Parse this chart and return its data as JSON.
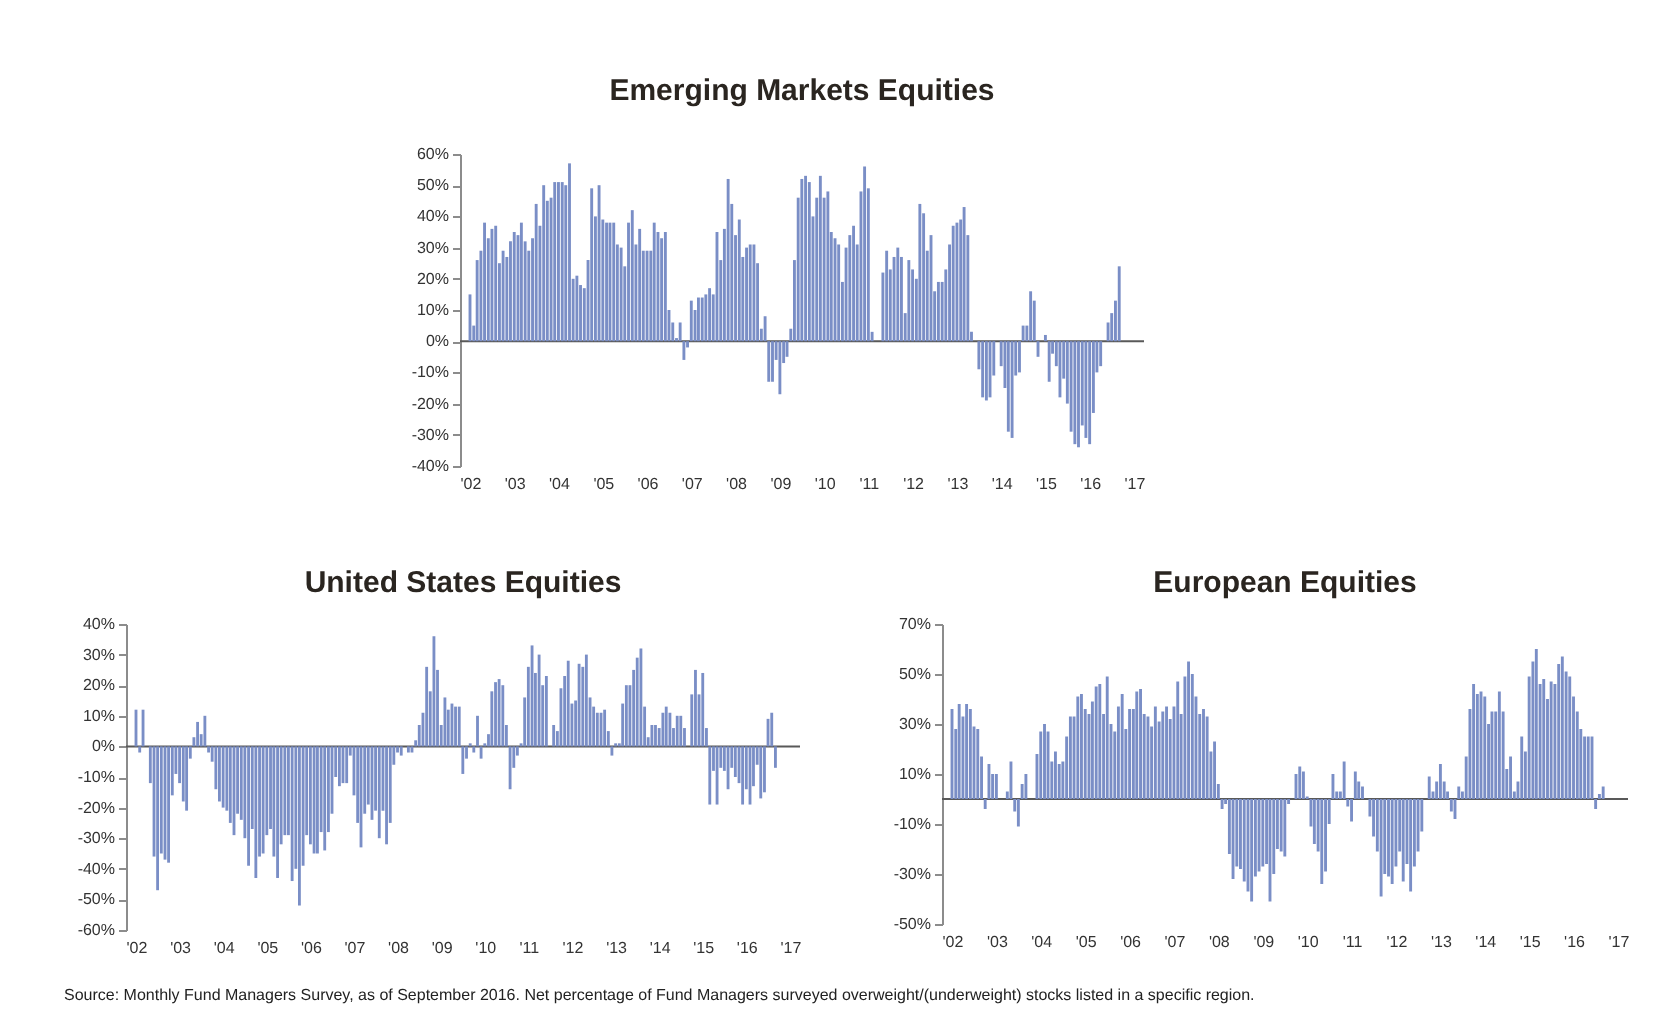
{
  "chart_data": [
    {
      "type": "bar",
      "title": "Emerging Markets Equities",
      "color": "#7a8ec6",
      "grid": false,
      "x": [
        "2002-01",
        "2002-02",
        "2002-03",
        "2002-04",
        "2002-05",
        "2002-06",
        "2002-07",
        "2002-08",
        "2002-09",
        "2002-10",
        "2002-11",
        "2002-12",
        "2003-01",
        "2003-02",
        "2003-03",
        "2003-04",
        "2003-05",
        "2003-06",
        "2003-07",
        "2003-08",
        "2003-09",
        "2003-10",
        "2003-11",
        "2003-12",
        "2004-01",
        "2004-02",
        "2004-03",
        "2004-04",
        "2004-05",
        "2004-06",
        "2004-07",
        "2004-08",
        "2004-09",
        "2004-10",
        "2004-11",
        "2004-12",
        "2005-01",
        "2005-02",
        "2005-03",
        "2005-04",
        "2005-05",
        "2005-06",
        "2005-07",
        "2005-08",
        "2005-09",
        "2005-10",
        "2005-11",
        "2005-12",
        "2006-01",
        "2006-02",
        "2006-03",
        "2006-04",
        "2006-05",
        "2006-06",
        "2006-07",
        "2006-08",
        "2006-09",
        "2006-10",
        "2006-11",
        "2006-12",
        "2007-01",
        "2007-02",
        "2007-03",
        "2007-04",
        "2007-05",
        "2007-06",
        "2007-07",
        "2007-08",
        "2007-09",
        "2007-10",
        "2007-11",
        "2007-12",
        "2008-01",
        "2008-02",
        "2008-03",
        "2008-04",
        "2008-05",
        "2008-06",
        "2008-07",
        "2008-08",
        "2008-09",
        "2008-10",
        "2008-11",
        "2008-12",
        "2009-01",
        "2009-02",
        "2009-03",
        "2009-04",
        "2009-05",
        "2009-06",
        "2009-07",
        "2009-08",
        "2009-09",
        "2009-10",
        "2009-11",
        "2009-12",
        "2010-01",
        "2010-02",
        "2010-03",
        "2010-04",
        "2010-05",
        "2010-06",
        "2010-07",
        "2010-08",
        "2010-09",
        "2010-10",
        "2010-11",
        "2010-12",
        "2011-01",
        "2011-02",
        "2011-03",
        "2011-04",
        "2011-05",
        "2011-06",
        "2011-07",
        "2011-08",
        "2011-09",
        "2011-10",
        "2011-11",
        "2011-12",
        "2012-01",
        "2012-02",
        "2012-03",
        "2012-04",
        "2012-05",
        "2012-06",
        "2012-07",
        "2012-08",
        "2012-09",
        "2012-10",
        "2012-11",
        "2012-12",
        "2013-01",
        "2013-02",
        "2013-03",
        "2013-04",
        "2013-05",
        "2013-06",
        "2013-07",
        "2013-08",
        "2013-09",
        "2013-10",
        "2013-11",
        "2013-12",
        "2014-01",
        "2014-02",
        "2014-03",
        "2014-04",
        "2014-05",
        "2014-06",
        "2014-07",
        "2014-08",
        "2014-09",
        "2014-10",
        "2014-11",
        "2014-12",
        "2015-01",
        "2015-02",
        "2015-03",
        "2015-04",
        "2015-05",
        "2015-06",
        "2015-07",
        "2015-08",
        "2015-09",
        "2015-10",
        "2015-11",
        "2015-12",
        "2016-01",
        "2016-02",
        "2016-03",
        "2016-04",
        "2016-05",
        "2016-06",
        "2016-07",
        "2016-08",
        "2016-09"
      ],
      "values": [
        15,
        5,
        26,
        29,
        38,
        33,
        36,
        37,
        25,
        29,
        27,
        32,
        35,
        34,
        38,
        32,
        29,
        33,
        44,
        37,
        50,
        45,
        46,
        51,
        51,
        51,
        50,
        57,
        20,
        21,
        18,
        17,
        26,
        49,
        40,
        50,
        39,
        38,
        38,
        38,
        31,
        30,
        24,
        38,
        42,
        31,
        36,
        29,
        29,
        29,
        38,
        35,
        33,
        35,
        10,
        6,
        1,
        6,
        -6,
        -2,
        13,
        10,
        14,
        14,
        15,
        17,
        15,
        35,
        26,
        36,
        52,
        44,
        34,
        39,
        27,
        30,
        31,
        31,
        25,
        4,
        8,
        -13,
        -13,
        -6,
        -17,
        -7,
        -5,
        4,
        26,
        46,
        52,
        53,
        51,
        40,
        46,
        53,
        46,
        48,
        35,
        33,
        31,
        19,
        30,
        34,
        37,
        31,
        48,
        56,
        49,
        3,
        0,
        0,
        22,
        29,
        23,
        27,
        30,
        27,
        9,
        26,
        23,
        20,
        44,
        41,
        29,
        34,
        16,
        19,
        19,
        23,
        31,
        37,
        38,
        39,
        43,
        34,
        3,
        0,
        -9,
        -18,
        -19,
        -18,
        -11,
        0,
        -8,
        -15,
        -29,
        -31,
        -11,
        -10,
        5,
        5,
        16,
        13,
        -5,
        0,
        2,
        -13,
        -4,
        -8,
        -18,
        -12,
        -20,
        -29,
        -33,
        -34,
        -27,
        -31,
        -33,
        -23,
        -10,
        -8,
        0,
        6,
        9,
        13,
        24
      ],
      "xlim": [
        "2002-01",
        "2017-01"
      ],
      "xticks": [
        {
          "value": "2002-01",
          "label": "'02"
        },
        {
          "value": "2003-01",
          "label": "'03"
        },
        {
          "value": "2004-01",
          "label": "'04"
        },
        {
          "value": "2005-01",
          "label": "'05"
        },
        {
          "value": "2006-01",
          "label": "'06"
        },
        {
          "value": "2007-01",
          "label": "'07"
        },
        {
          "value": "2008-01",
          "label": "'08"
        },
        {
          "value": "2009-01",
          "label": "'09"
        },
        {
          "value": "2010-01",
          "label": "'10"
        },
        {
          "value": "2011-01",
          "label": "'11"
        },
        {
          "value": "2012-01",
          "label": "'12"
        },
        {
          "value": "2013-01",
          "label": "'13"
        },
        {
          "value": "2014-01",
          "label": "'14"
        },
        {
          "value": "2015-01",
          "label": "'15"
        },
        {
          "value": "2016-01",
          "label": "'16"
        },
        {
          "value": "2017-01",
          "label": "'17"
        }
      ],
      "ylim": [
        -40,
        60
      ],
      "yticks": [
        {
          "value": -40,
          "label": "-40%"
        },
        {
          "value": -30,
          "label": "-30%"
        },
        {
          "value": -20,
          "label": "-20%"
        },
        {
          "value": -10,
          "label": "-10%"
        },
        {
          "value": 0,
          "label": "0%"
        },
        {
          "value": 10,
          "label": "10%"
        },
        {
          "value": 20,
          "label": "20%"
        },
        {
          "value": 30,
          "label": "30%"
        },
        {
          "value": 40,
          "label": "40%"
        },
        {
          "value": 50,
          "label": "50%"
        },
        {
          "value": 60,
          "label": "60%"
        }
      ],
      "ref_lines": [
        {
          "axis": "y",
          "value": 0,
          "color": "#595959"
        }
      ]
    },
    {
      "type": "bar",
      "title": "United States Equities",
      "color": "#7a8ec6",
      "grid": false,
      "x": [
        "2002-01",
        "2002-02",
        "2002-03",
        "2002-04",
        "2002-05",
        "2002-06",
        "2002-07",
        "2002-08",
        "2002-09",
        "2002-10",
        "2002-11",
        "2002-12",
        "2003-01",
        "2003-02",
        "2003-03",
        "2003-04",
        "2003-05",
        "2003-06",
        "2003-07",
        "2003-08",
        "2003-09",
        "2003-10",
        "2003-11",
        "2003-12",
        "2004-01",
        "2004-02",
        "2004-03",
        "2004-04",
        "2004-05",
        "2004-06",
        "2004-07",
        "2004-08",
        "2004-09",
        "2004-10",
        "2004-11",
        "2004-12",
        "2005-01",
        "2005-02",
        "2005-03",
        "2005-04",
        "2005-05",
        "2005-06",
        "2005-07",
        "2005-08",
        "2005-09",
        "2005-10",
        "2005-11",
        "2005-12",
        "2006-01",
        "2006-02",
        "2006-03",
        "2006-04",
        "2006-05",
        "2006-06",
        "2006-07",
        "2006-08",
        "2006-09",
        "2006-10",
        "2006-11",
        "2006-12",
        "2007-01",
        "2007-02",
        "2007-03",
        "2007-04",
        "2007-05",
        "2007-06",
        "2007-07",
        "2007-08",
        "2007-09",
        "2007-10",
        "2007-11",
        "2007-12",
        "2008-01",
        "2008-02",
        "2008-03",
        "2008-04",
        "2008-05",
        "2008-06",
        "2008-07",
        "2008-08",
        "2008-09",
        "2008-10",
        "2008-11",
        "2008-12",
        "2009-01",
        "2009-02",
        "2009-03",
        "2009-04",
        "2009-05",
        "2009-06",
        "2009-07",
        "2009-08",
        "2009-09",
        "2009-10",
        "2009-11",
        "2009-12",
        "2010-01",
        "2010-02",
        "2010-03",
        "2010-04",
        "2010-05",
        "2010-06",
        "2010-07",
        "2010-08",
        "2010-09",
        "2010-10",
        "2010-11",
        "2010-12",
        "2011-01",
        "2011-02",
        "2011-03",
        "2011-04",
        "2011-05",
        "2011-06",
        "2011-07",
        "2011-08",
        "2011-09",
        "2011-10",
        "2011-11",
        "2011-12",
        "2012-01",
        "2012-02",
        "2012-03",
        "2012-04",
        "2012-05",
        "2012-06",
        "2012-07",
        "2012-08",
        "2012-09",
        "2012-10",
        "2012-11",
        "2012-12",
        "2013-01",
        "2013-02",
        "2013-03",
        "2013-04",
        "2013-05",
        "2013-06",
        "2013-07",
        "2013-08",
        "2013-09",
        "2013-10",
        "2013-11",
        "2013-12",
        "2014-01",
        "2014-02",
        "2014-03",
        "2014-04",
        "2014-05",
        "2014-06",
        "2014-07",
        "2014-08",
        "2014-09",
        "2014-10",
        "2014-11",
        "2014-12",
        "2015-01",
        "2015-02",
        "2015-03",
        "2015-04",
        "2015-05",
        "2015-06",
        "2015-07",
        "2015-08",
        "2015-09",
        "2015-10",
        "2015-11",
        "2015-12",
        "2016-01",
        "2016-02",
        "2016-03",
        "2016-04",
        "2016-05",
        "2016-06",
        "2016-07",
        "2016-08",
        "2016-09"
      ],
      "values": [
        12,
        -2,
        12,
        0,
        -12,
        -36,
        -47,
        -35,
        -37,
        -38,
        -16,
        -9,
        -12,
        -18,
        -21,
        -4,
        3,
        8,
        4,
        10,
        -2,
        -5,
        -14,
        -18,
        -20,
        -21,
        -25,
        -29,
        -22,
        -24,
        -30,
        -39,
        -27,
        -43,
        -36,
        -35,
        -29,
        -27,
        -36,
        -43,
        -32,
        -29,
        -29,
        -44,
        -40,
        -52,
        -39,
        -29,
        -32,
        -35,
        -35,
        -28,
        -34,
        -28,
        -22,
        -10,
        -13,
        -12,
        -12,
        -3,
        -16,
        -25,
        -33,
        -22,
        -19,
        -24,
        -21,
        -30,
        -21,
        -32,
        -25,
        -6,
        -2,
        -3,
        0,
        -2,
        -2,
        2,
        7,
        11,
        26,
        18,
        36,
        25,
        7,
        16,
        12,
        14,
        13,
        13,
        -9,
        -4,
        1,
        -2,
        10,
        -4,
        1,
        4,
        18,
        21,
        22,
        20,
        7,
        -14,
        -7,
        -3,
        1,
        16,
        26,
        33,
        24,
        30,
        20,
        23,
        0,
        7,
        5,
        19,
        23,
        28,
        14,
        15,
        27,
        26,
        30,
        16,
        13,
        11,
        11,
        12,
        5,
        -3,
        1,
        1,
        14,
        20,
        20,
        25,
        29,
        32,
        13,
        3,
        7,
        7,
        6,
        11,
        13,
        11,
        6,
        10,
        10,
        6,
        0,
        17,
        25,
        17,
        24,
        6,
        -19,
        -8,
        -19,
        -7,
        -8,
        -14,
        -7,
        -10,
        -12,
        -19,
        -14,
        -19,
        -13,
        -6,
        -17,
        -15,
        9,
        11,
        -7
      ],
      "xlim": [
        "2002-01",
        "2017-01"
      ],
      "xticks": [
        {
          "value": "2002-01",
          "label": "'02"
        },
        {
          "value": "2003-01",
          "label": "'03"
        },
        {
          "value": "2004-01",
          "label": "'04"
        },
        {
          "value": "2005-01",
          "label": "'05"
        },
        {
          "value": "2006-01",
          "label": "'06"
        },
        {
          "value": "2007-01",
          "label": "'07"
        },
        {
          "value": "2008-01",
          "label": "'08"
        },
        {
          "value": "2009-01",
          "label": "'09"
        },
        {
          "value": "2010-01",
          "label": "'10"
        },
        {
          "value": "2011-01",
          "label": "'11"
        },
        {
          "value": "2012-01",
          "label": "'12"
        },
        {
          "value": "2013-01",
          "label": "'13"
        },
        {
          "value": "2014-01",
          "label": "'14"
        },
        {
          "value": "2015-01",
          "label": "'15"
        },
        {
          "value": "2016-01",
          "label": "'16"
        },
        {
          "value": "2017-01",
          "label": "'17"
        }
      ],
      "ylim": [
        -60,
        40
      ],
      "yticks": [
        {
          "value": -60,
          "label": "-60%"
        },
        {
          "value": -50,
          "label": "-50%"
        },
        {
          "value": -40,
          "label": "-40%"
        },
        {
          "value": -30,
          "label": "-30%"
        },
        {
          "value": -20,
          "label": "-20%"
        },
        {
          "value": -10,
          "label": "-10%"
        },
        {
          "value": 0,
          "label": "0%"
        },
        {
          "value": 10,
          "label": "10%"
        },
        {
          "value": 20,
          "label": "20%"
        },
        {
          "value": 30,
          "label": "30%"
        },
        {
          "value": 40,
          "label": "40%"
        }
      ],
      "ref_lines": [
        {
          "axis": "y",
          "value": 0,
          "color": "#595959"
        }
      ]
    },
    {
      "type": "bar",
      "title": "European Equities",
      "color": "#7a8ec6",
      "grid": false,
      "x": [
        "2002-01",
        "2002-02",
        "2002-03",
        "2002-04",
        "2002-05",
        "2002-06",
        "2002-07",
        "2002-08",
        "2002-09",
        "2002-10",
        "2002-11",
        "2002-12",
        "2003-01",
        "2003-02",
        "2003-03",
        "2003-04",
        "2003-05",
        "2003-06",
        "2003-07",
        "2003-08",
        "2003-09",
        "2003-10",
        "2003-11",
        "2003-12",
        "2004-01",
        "2004-02",
        "2004-03",
        "2004-04",
        "2004-05",
        "2004-06",
        "2004-07",
        "2004-08",
        "2004-09",
        "2004-10",
        "2004-11",
        "2004-12",
        "2005-01",
        "2005-02",
        "2005-03",
        "2005-04",
        "2005-05",
        "2005-06",
        "2005-07",
        "2005-08",
        "2005-09",
        "2005-10",
        "2005-11",
        "2005-12",
        "2006-01",
        "2006-02",
        "2006-03",
        "2006-04",
        "2006-05",
        "2006-06",
        "2006-07",
        "2006-08",
        "2006-09",
        "2006-10",
        "2006-11",
        "2006-12",
        "2007-01",
        "2007-02",
        "2007-03",
        "2007-04",
        "2007-05",
        "2007-06",
        "2007-07",
        "2007-08",
        "2007-09",
        "2007-10",
        "2007-11",
        "2007-12",
        "2008-01",
        "2008-02",
        "2008-03",
        "2008-04",
        "2008-05",
        "2008-06",
        "2008-07",
        "2008-08",
        "2008-09",
        "2008-10",
        "2008-11",
        "2008-12",
        "2009-01",
        "2009-02",
        "2009-03",
        "2009-04",
        "2009-05",
        "2009-06",
        "2009-07",
        "2009-08",
        "2009-09",
        "2009-10",
        "2009-11",
        "2009-12",
        "2010-01",
        "2010-02",
        "2010-03",
        "2010-04",
        "2010-05",
        "2010-06",
        "2010-07",
        "2010-08",
        "2010-09",
        "2010-10",
        "2010-11",
        "2010-12",
        "2011-01",
        "2011-02",
        "2011-03",
        "2011-04",
        "2011-05",
        "2011-06",
        "2011-07",
        "2011-08",
        "2011-09",
        "2011-10",
        "2011-11",
        "2011-12",
        "2012-01",
        "2012-02",
        "2012-03",
        "2012-04",
        "2012-05",
        "2012-06",
        "2012-07",
        "2012-08",
        "2012-09",
        "2012-10",
        "2012-11",
        "2012-12",
        "2013-01",
        "2013-02",
        "2013-03",
        "2013-04",
        "2013-05",
        "2013-06",
        "2013-07",
        "2013-08",
        "2013-09",
        "2013-10",
        "2013-11",
        "2013-12",
        "2014-01",
        "2014-02",
        "2014-03",
        "2014-04",
        "2014-05",
        "2014-06",
        "2014-07",
        "2014-08",
        "2014-09",
        "2014-10",
        "2014-11",
        "2014-12",
        "2015-01",
        "2015-02",
        "2015-03",
        "2015-04",
        "2015-05",
        "2015-06",
        "2015-07",
        "2015-08",
        "2015-09",
        "2015-10",
        "2015-11",
        "2015-12",
        "2016-01",
        "2016-02",
        "2016-03",
        "2016-04",
        "2016-05",
        "2016-06",
        "2016-07",
        "2016-08",
        "2016-09"
      ],
      "values": [
        36,
        28,
        38,
        33,
        38,
        36,
        29,
        28,
        17,
        -4,
        14,
        10,
        10,
        0,
        0,
        3,
        15,
        -5,
        -11,
        6,
        10,
        0,
        0,
        18,
        27,
        30,
        27,
        15,
        19,
        14,
        15,
        25,
        33,
        33,
        41,
        42,
        36,
        34,
        39,
        45,
        46,
        34,
        49,
        30,
        27,
        37,
        42,
        28,
        36,
        36,
        43,
        44,
        34,
        33,
        29,
        37,
        31,
        35,
        37,
        32,
        37,
        47,
        34,
        49,
        55,
        50,
        41,
        34,
        36,
        33,
        19,
        23,
        6,
        -4,
        -2,
        -22,
        -32,
        -27,
        -28,
        -33,
        -37,
        -41,
        -31,
        -29,
        -27,
        -26,
        -41,
        -30,
        -20,
        -21,
        -23,
        -2,
        0,
        10,
        13,
        11,
        1,
        -11,
        -18,
        -21,
        -34,
        -29,
        -10,
        10,
        3,
        3,
        15,
        -3,
        -9,
        11,
        7,
        5,
        0,
        -7,
        -15,
        -21,
        -39,
        -30,
        -31,
        -34,
        -27,
        -21,
        -33,
        -26,
        -37,
        -27,
        -21,
        -13,
        0,
        9,
        3,
        7,
        14,
        7,
        3,
        -5,
        -8,
        5,
        3,
        17,
        36,
        46,
        42,
        43,
        41,
        30,
        35,
        35,
        43,
        35,
        12,
        17,
        3,
        7,
        25,
        19,
        49,
        55,
        60,
        46,
        48,
        40,
        47,
        46,
        54,
        57,
        51,
        49,
        41,
        35,
        28,
        25,
        25,
        25,
        -4,
        2,
        5
      ],
      "xlim": [
        "2002-01",
        "2017-01"
      ],
      "xticks": [
        {
          "value": "2002-01",
          "label": "'02"
        },
        {
          "value": "2003-01",
          "label": "'03"
        },
        {
          "value": "2004-01",
          "label": "'04"
        },
        {
          "value": "2005-01",
          "label": "'05"
        },
        {
          "value": "2006-01",
          "label": "'06"
        },
        {
          "value": "2007-01",
          "label": "'07"
        },
        {
          "value": "2008-01",
          "label": "'08"
        },
        {
          "value": "2009-01",
          "label": "'09"
        },
        {
          "value": "2010-01",
          "label": "'10"
        },
        {
          "value": "2011-01",
          "label": "'11"
        },
        {
          "value": "2012-01",
          "label": "'12"
        },
        {
          "value": "2013-01",
          "label": "'13"
        },
        {
          "value": "2014-01",
          "label": "'14"
        },
        {
          "value": "2015-01",
          "label": "'15"
        },
        {
          "value": "2016-01",
          "label": "'16"
        },
        {
          "value": "2017-01",
          "label": "'17"
        }
      ],
      "ylim": [
        -50,
        70
      ],
      "yticks": [
        {
          "value": -50,
          "label": "-50%"
        },
        {
          "value": -30,
          "label": "-30%"
        },
        {
          "value": -10,
          "label": "-10%"
        },
        {
          "value": 10,
          "label": "10%"
        },
        {
          "value": 30,
          "label": "30%"
        },
        {
          "value": 50,
          "label": "50%"
        },
        {
          "value": 70,
          "label": "70%"
        }
      ],
      "ref_lines": [
        {
          "axis": "y",
          "value": 0,
          "color": "#595959"
        }
      ],
      "annotations": [
        "Source: Monthly Fund Managers Survey, as of September 2016. Net percentage of Fund Managers surveyed overweight/(underweight) stocks listed in a specific region."
      ]
    }
  ]
}
